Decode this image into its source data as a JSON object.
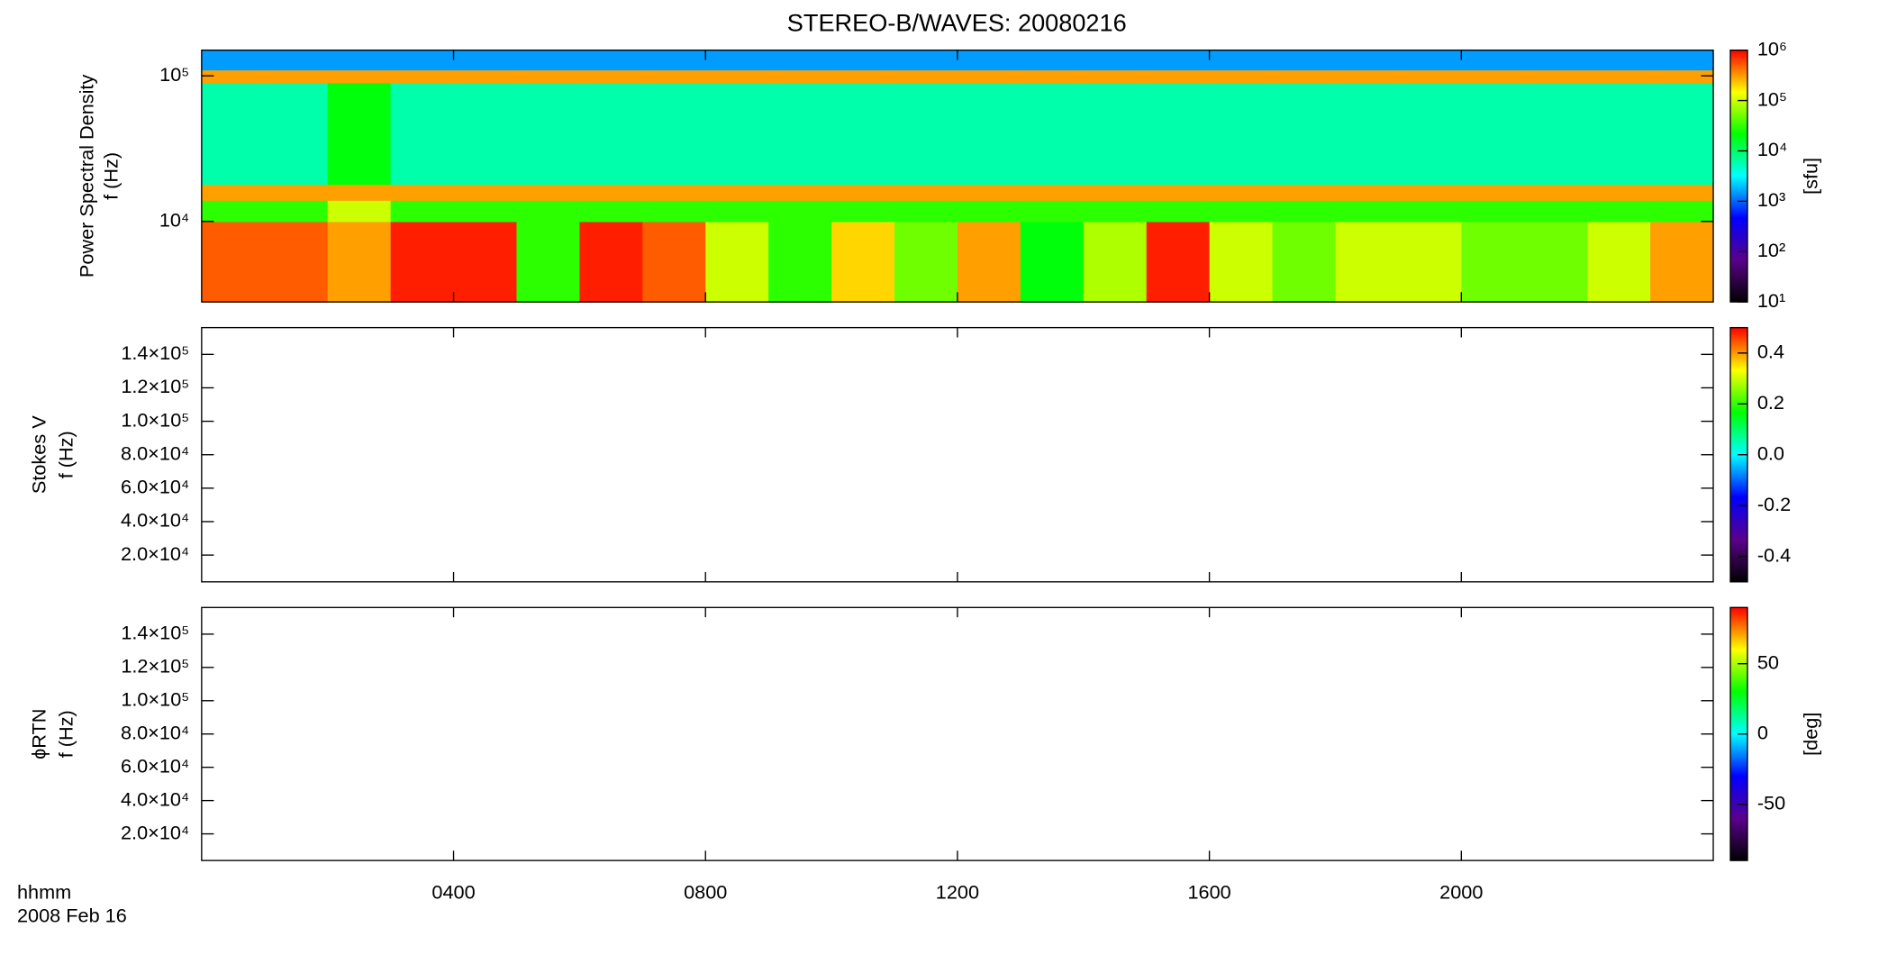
{
  "title": "STEREO-B/WAVES: 20080216",
  "time_label": "hhmm",
  "date_label": "2008 Feb 16",
  "chart_data": [
    {
      "type": "heatmap",
      "ylabel_lines": [
        "Power Spectral Density",
        "f (Hz)"
      ],
      "xlim": [
        0,
        24
      ],
      "xticks": [
        {
          "value": 4,
          "label": "0400"
        },
        {
          "value": 8,
          "label": "0800"
        },
        {
          "value": 12,
          "label": "1200"
        },
        {
          "value": 16,
          "label": "1600"
        },
        {
          "value": 20,
          "label": "2000"
        }
      ],
      "ylim": [
        2800,
        150000
      ],
      "ylog": true,
      "yticks": [
        {
          "value": 10000,
          "label": "10⁴"
        },
        {
          "value": 100000,
          "label": "10⁵"
        }
      ],
      "x_bins": [
        0,
        1,
        2,
        3,
        4,
        5,
        6,
        7,
        8,
        9,
        10,
        11,
        12,
        13,
        14,
        15,
        16,
        17,
        18,
        19,
        20,
        21,
        22,
        23,
        24
      ],
      "y_bins": [
        2800,
        10000,
        14000,
        18000,
        90000,
        110000,
        150000
      ],
      "z": [
        [
          500000,
          500000,
          300000,
          800000,
          800000,
          30000,
          800000,
          500000,
          100000,
          30000,
          200000,
          50000,
          300000,
          20000,
          80000,
          800000,
          100000,
          50000,
          100000,
          100000,
          50000,
          50000,
          100000,
          300000
        ],
        [
          30000,
          30000,
          100000,
          30000,
          30000,
          30000,
          30000,
          30000,
          30000,
          30000,
          30000,
          30000,
          30000,
          30000,
          30000,
          30000,
          30000,
          30000,
          30000,
          30000,
          30000,
          30000,
          30000,
          30000
        ],
        [
          300000,
          300000,
          300000,
          300000,
          300000,
          300000,
          300000,
          300000,
          300000,
          300000,
          300000,
          300000,
          300000,
          300000,
          300000,
          300000,
          300000,
          300000,
          300000,
          300000,
          300000,
          300000,
          300000,
          300000
        ],
        [
          6000,
          6000,
          20000,
          6000,
          6000,
          6000,
          6000,
          6000,
          6000,
          6000,
          6000,
          6000,
          6000,
          6000,
          6000,
          6000,
          6000,
          6000,
          6000,
          6000,
          6000,
          6000,
          6000,
          6000
        ],
        [
          300000,
          300000,
          300000,
          300000,
          300000,
          300000,
          300000,
          300000,
          300000,
          300000,
          300000,
          300000,
          300000,
          300000,
          300000,
          300000,
          300000,
          300000,
          300000,
          300000,
          300000,
          300000,
          300000,
          300000
        ],
        [
          1500,
          1500,
          1500,
          1500,
          1500,
          1500,
          1500,
          1500,
          1500,
          1500,
          1500,
          1500,
          1500,
          1500,
          1500,
          1500,
          1500,
          1500,
          1500,
          1500,
          1500,
          1500,
          1500,
          1500
        ]
      ],
      "colormap": [
        "#000000",
        "#5a008c",
        "#0000ff",
        "#00ffff",
        "#00ff00",
        "#ffff00",
        "#ff0000"
      ],
      "colorbar": {
        "lim": [
          10,
          1000000
        ],
        "log": true,
        "label": "[sfu]",
        "ticks": [
          {
            "value": 10,
            "label": "10¹"
          },
          {
            "value": 100,
            "label": "10²"
          },
          {
            "value": 1000,
            "label": "10³"
          },
          {
            "value": 10000,
            "label": "10⁴"
          },
          {
            "value": 100000,
            "label": "10⁵"
          },
          {
            "value": 1000000,
            "label": "10⁶"
          }
        ]
      }
    },
    {
      "type": "heatmap",
      "ylabel_lines": [
        "Stokes V",
        "f (Hz)"
      ],
      "xlim": [
        0,
        24
      ],
      "xticks": [
        {
          "value": 4,
          "label": "0400"
        },
        {
          "value": 8,
          "label": "0800"
        },
        {
          "value": 12,
          "label": "1200"
        },
        {
          "value": 16,
          "label": "1600"
        },
        {
          "value": 20,
          "label": "2000"
        }
      ],
      "ylim": [
        4000,
        156000
      ],
      "ylog": false,
      "yticks": [
        {
          "value": 20000,
          "label": "2.0×10⁴"
        },
        {
          "value": 40000,
          "label": "4.0×10⁴"
        },
        {
          "value": 60000,
          "label": "6.0×10⁴"
        },
        {
          "value": 80000,
          "label": "8.0×10⁴"
        },
        {
          "value": 100000,
          "label": "1.0×10⁵"
        },
        {
          "value": 120000,
          "label": "1.2×10⁵"
        },
        {
          "value": 140000,
          "label": "1.4×10⁵"
        }
      ],
      "colormap": [
        "#000000",
        "#5a008c",
        "#0000ff",
        "#00ffff",
        "#00ff00",
        "#ffff00",
        "#ff0000"
      ],
      "colorbar": {
        "lim": [
          -0.5,
          0.5
        ],
        "log": false,
        "ticks": [
          {
            "value": -0.4,
            "label": "-0.4"
          },
          {
            "value": -0.2,
            "label": "-0.2"
          },
          {
            "value": 0,
            "label": "0.0"
          },
          {
            "value": 0.2,
            "label": "0.2"
          },
          {
            "value": 0.4,
            "label": "0.4"
          }
        ]
      }
    },
    {
      "type": "heatmap",
      "ylabel_lines": [
        "ϕRTN",
        "f (Hz)"
      ],
      "xlim": [
        0,
        24
      ],
      "xticks": [
        {
          "value": 4,
          "label": "0400"
        },
        {
          "value": 8,
          "label": "0800"
        },
        {
          "value": 12,
          "label": "1200"
        },
        {
          "value": 16,
          "label": "1600"
        },
        {
          "value": 20,
          "label": "2000"
        }
      ],
      "ylim": [
        4000,
        156000
      ],
      "ylog": false,
      "yticks": [
        {
          "value": 20000,
          "label": "2.0×10⁴"
        },
        {
          "value": 40000,
          "label": "4.0×10⁴"
        },
        {
          "value": 60000,
          "label": "6.0×10⁴"
        },
        {
          "value": 80000,
          "label": "8.0×10⁴"
        },
        {
          "value": 100000,
          "label": "1.0×10⁵"
        },
        {
          "value": 120000,
          "label": "1.2×10⁵"
        },
        {
          "value": 140000,
          "label": "1.4×10⁵"
        }
      ],
      "colormap": [
        "#000000",
        "#5a008c",
        "#0000ff",
        "#00ffff",
        "#00ff00",
        "#ffff00",
        "#ff0000"
      ],
      "colorbar": {
        "lim": [
          -90,
          90
        ],
        "log": false,
        "label": "[deg]",
        "ticks": [
          {
            "value": -50,
            "label": "-50"
          },
          0,
          50
        ]
      }
    }
  ]
}
